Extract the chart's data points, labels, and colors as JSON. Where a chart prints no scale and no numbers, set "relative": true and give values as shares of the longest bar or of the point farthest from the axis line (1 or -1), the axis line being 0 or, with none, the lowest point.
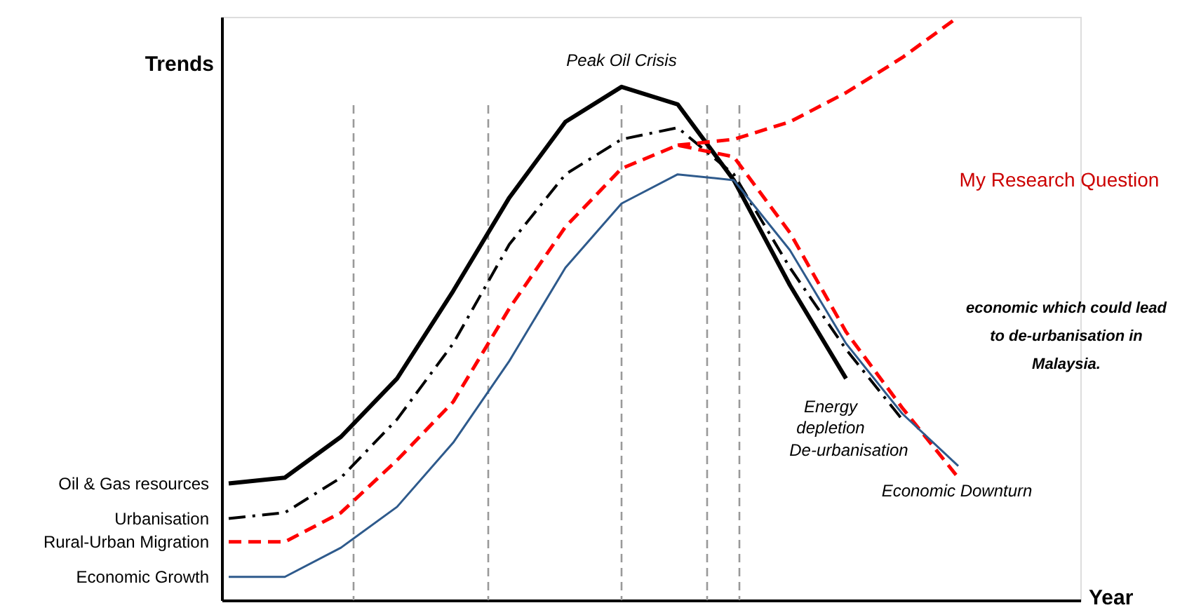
{
  "chart_data": {
    "type": "line",
    "relative": true,
    "xlabel": "Year",
    "ylabel": "Trends",
    "grid": false,
    "legend": false,
    "categories": [
      null,
      null,
      null,
      null,
      null,
      null,
      null,
      null,
      null,
      null,
      null,
      null,
      null,
      null
    ],
    "series": [
      {
        "name": "Oil & Gas resources",
        "color": "#000000",
        "line_style": "solid",
        "values": [
          0.2,
          0.21,
          0.28,
          0.38,
          0.53,
          0.69,
          0.82,
          0.88,
          0.85,
          0.72,
          0.54,
          0.38,
          null,
          null
        ]
      },
      {
        "name": "Urbanisation",
        "color": "#000000",
        "line_style": "dashdot",
        "values": [
          0.14,
          0.15,
          0.21,
          0.31,
          0.44,
          0.61,
          0.73,
          0.79,
          0.81,
          0.73,
          0.57,
          0.43,
          0.31,
          null
        ]
      },
      {
        "name": "Rural-Urban Migration",
        "color": "#ff0000",
        "line_style": "dashed",
        "values": [
          0.1,
          0.1,
          0.15,
          0.24,
          0.34,
          0.5,
          0.64,
          0.74,
          0.78,
          0.76,
          0.63,
          0.46,
          0.33,
          0.21
        ]
      },
      {
        "color": "#ff0000",
        "line_style": "dashed",
        "values": [
          null,
          null,
          null,
          null,
          null,
          null,
          null,
          null,
          0.78,
          0.79,
          0.82,
          0.87,
          0.93,
          1.0
        ]
      },
      {
        "name": "Economic Growth",
        "color": "#2e5a8c",
        "line_style": "solid",
        "values": [
          0.04,
          0.04,
          0.09,
          0.16,
          0.27,
          0.41,
          0.57,
          0.68,
          0.73,
          0.72,
          0.6,
          0.44,
          0.32,
          0.23
        ]
      }
    ],
    "annotations": [
      "Peak Oil Crisis",
      "Energy\ndepletion",
      "De-urbanisation",
      "Economic Downturn",
      "My Research Question",
      "economic which could lead\nto de-urbanisation  in\nMalaysia."
    ]
  }
}
